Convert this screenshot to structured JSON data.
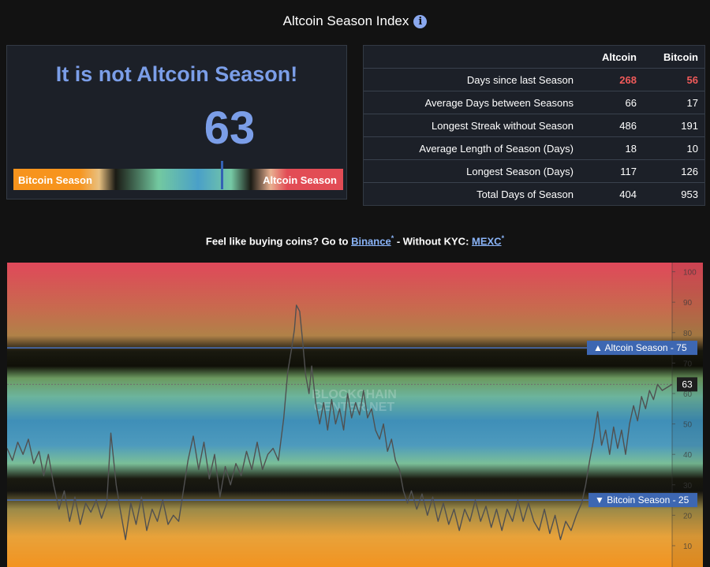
{
  "title": "Altcoin Season Index",
  "info_icon": "info-icon",
  "status": {
    "headline": "It is not Altcoin Season!",
    "index_value": "63",
    "index_fraction": 0.63,
    "left_label": "Bitcoin Season",
    "right_label": "Altcoin Season"
  },
  "stats": {
    "headers": [
      "",
      "Altcoin",
      "Bitcoin"
    ],
    "rows": [
      {
        "label": "Days since last Season",
        "altcoin": "268",
        "bitcoin": "56",
        "highlight": true
      },
      {
        "label": "Average Days between Seasons",
        "altcoin": "66",
        "bitcoin": "17"
      },
      {
        "label": "Longest Streak without Season",
        "altcoin": "486",
        "bitcoin": "191"
      },
      {
        "label": "Average Length of Season (Days)",
        "altcoin": "18",
        "bitcoin": "10"
      },
      {
        "label": "Longest Season (Days)",
        "altcoin": "117",
        "bitcoin": "126"
      },
      {
        "label": "Total Days of Season",
        "altcoin": "404",
        "bitcoin": "953"
      }
    ]
  },
  "promo": {
    "prefix": "Feel like buying coins? Go to ",
    "link1": "Binance",
    "middle": " - Without KYC: ",
    "link2": "MEXC",
    "asterisk": "*"
  },
  "colors": {
    "accent": "#7b9ee8",
    "highlight": "#f05a5a",
    "altcoin_zone": "#e24c55",
    "bitcoin_zone": "#f7941d",
    "threshold_tag": "#3d67b2"
  },
  "chart_data": {
    "type": "line",
    "watermark": "BLOCKCHAIN CENTER.NET",
    "y_ticks": [
      "10",
      "20",
      "30",
      "40",
      "50",
      "60",
      "70",
      "80",
      "90",
      "100"
    ],
    "ylim": [
      3,
      103
    ],
    "x_range": [
      0,
      100
    ],
    "altcoin_line": {
      "label": "▲ Altcoin Season - 75",
      "value": 75
    },
    "bitcoin_line": {
      "label": "▼ Bitcoin Season - 25",
      "value": 25
    },
    "current": {
      "label": "63",
      "value": 63
    },
    "series": [
      {
        "values": [
          [
            0.0,
            42
          ],
          [
            0.8,
            38
          ],
          [
            1.6,
            44
          ],
          [
            2.4,
            40
          ],
          [
            3.2,
            45
          ],
          [
            4.0,
            37
          ],
          [
            4.8,
            41
          ],
          [
            5.5,
            33
          ],
          [
            6.2,
            40
          ],
          [
            7.0,
            30
          ],
          [
            7.8,
            22
          ],
          [
            8.6,
            28
          ],
          [
            9.4,
            18
          ],
          [
            10.2,
            26
          ],
          [
            11.0,
            17
          ],
          [
            11.8,
            24
          ],
          [
            12.6,
            21
          ],
          [
            13.4,
            25
          ],
          [
            14.2,
            19
          ],
          [
            15.0,
            24
          ],
          [
            15.6,
            47
          ],
          [
            16.4,
            30
          ],
          [
            17.0,
            22
          ],
          [
            17.8,
            12
          ],
          [
            18.6,
            24
          ],
          [
            19.4,
            17
          ],
          [
            20.2,
            26
          ],
          [
            21.0,
            15
          ],
          [
            21.8,
            22
          ],
          [
            22.6,
            18
          ],
          [
            23.4,
            25
          ],
          [
            24.2,
            17
          ],
          [
            25.0,
            20
          ],
          [
            25.8,
            18
          ],
          [
            26.5,
            28
          ],
          [
            27.2,
            38
          ],
          [
            28.0,
            46
          ],
          [
            28.8,
            35
          ],
          [
            29.6,
            44
          ],
          [
            30.4,
            32
          ],
          [
            31.2,
            40
          ],
          [
            32.0,
            26
          ],
          [
            32.8,
            36
          ],
          [
            33.6,
            30
          ],
          [
            34.4,
            37
          ],
          [
            35.2,
            33
          ],
          [
            36.0,
            41
          ],
          [
            36.8,
            35
          ],
          [
            37.6,
            44
          ],
          [
            38.4,
            35
          ],
          [
            39.2,
            40
          ],
          [
            40.0,
            42
          ],
          [
            40.8,
            38
          ],
          [
            41.6,
            52
          ],
          [
            42.2,
            67
          ],
          [
            42.8,
            75
          ],
          [
            43.2,
            81
          ],
          [
            43.5,
            89
          ],
          [
            44.0,
            87
          ],
          [
            44.4,
            78
          ],
          [
            44.9,
            66
          ],
          [
            45.4,
            60
          ],
          [
            45.8,
            69
          ],
          [
            46.4,
            57
          ],
          [
            47.0,
            50
          ],
          [
            47.6,
            57
          ],
          [
            48.2,
            48
          ],
          [
            48.8,
            58
          ],
          [
            49.4,
            50
          ],
          [
            50.0,
            55
          ],
          [
            50.6,
            48
          ],
          [
            51.2,
            60
          ],
          [
            51.8,
            52
          ],
          [
            52.4,
            57
          ],
          [
            53.0,
            53
          ],
          [
            53.6,
            61
          ],
          [
            54.2,
            52
          ],
          [
            54.8,
            55
          ],
          [
            55.4,
            48
          ],
          [
            56.0,
            45
          ],
          [
            56.6,
            50
          ],
          [
            57.2,
            41
          ],
          [
            57.8,
            45
          ],
          [
            58.4,
            38
          ],
          [
            59.0,
            35
          ],
          [
            59.6,
            28
          ],
          [
            60.2,
            24
          ],
          [
            60.8,
            28
          ],
          [
            61.6,
            22
          ],
          [
            62.4,
            27
          ],
          [
            63.2,
            20
          ],
          [
            64.0,
            26
          ],
          [
            64.8,
            18
          ],
          [
            65.6,
            24
          ],
          [
            66.4,
            17
          ],
          [
            67.2,
            22
          ],
          [
            68.0,
            15
          ],
          [
            68.8,
            22
          ],
          [
            69.6,
            18
          ],
          [
            70.4,
            25
          ],
          [
            71.2,
            18
          ],
          [
            72.0,
            23
          ],
          [
            72.8,
            16
          ],
          [
            73.6,
            22
          ],
          [
            74.4,
            15
          ],
          [
            75.2,
            22
          ],
          [
            76.0,
            18
          ],
          [
            76.8,
            25
          ],
          [
            77.6,
            18
          ],
          [
            78.4,
            24
          ],
          [
            79.2,
            18
          ],
          [
            80.0,
            15
          ],
          [
            80.8,
            22
          ],
          [
            81.6,
            14
          ],
          [
            82.4,
            20
          ],
          [
            83.2,
            12
          ],
          [
            84.0,
            18
          ],
          [
            84.8,
            15
          ],
          [
            85.6,
            20
          ],
          [
            86.4,
            24
          ],
          [
            87.0,
            30
          ],
          [
            87.6,
            38
          ],
          [
            88.2,
            45
          ],
          [
            88.8,
            54
          ],
          [
            89.4,
            43
          ],
          [
            90.0,
            48
          ],
          [
            90.6,
            40
          ],
          [
            91.2,
            49
          ],
          [
            91.8,
            42
          ],
          [
            92.4,
            48
          ],
          [
            93.0,
            40
          ],
          [
            93.6,
            50
          ],
          [
            94.2,
            56
          ],
          [
            94.8,
            51
          ],
          [
            95.4,
            59
          ],
          [
            96.0,
            55
          ],
          [
            96.6,
            61
          ],
          [
            97.2,
            58
          ],
          [
            97.8,
            63
          ],
          [
            98.5,
            61
          ],
          [
            100.0,
            63
          ]
        ]
      }
    ]
  }
}
